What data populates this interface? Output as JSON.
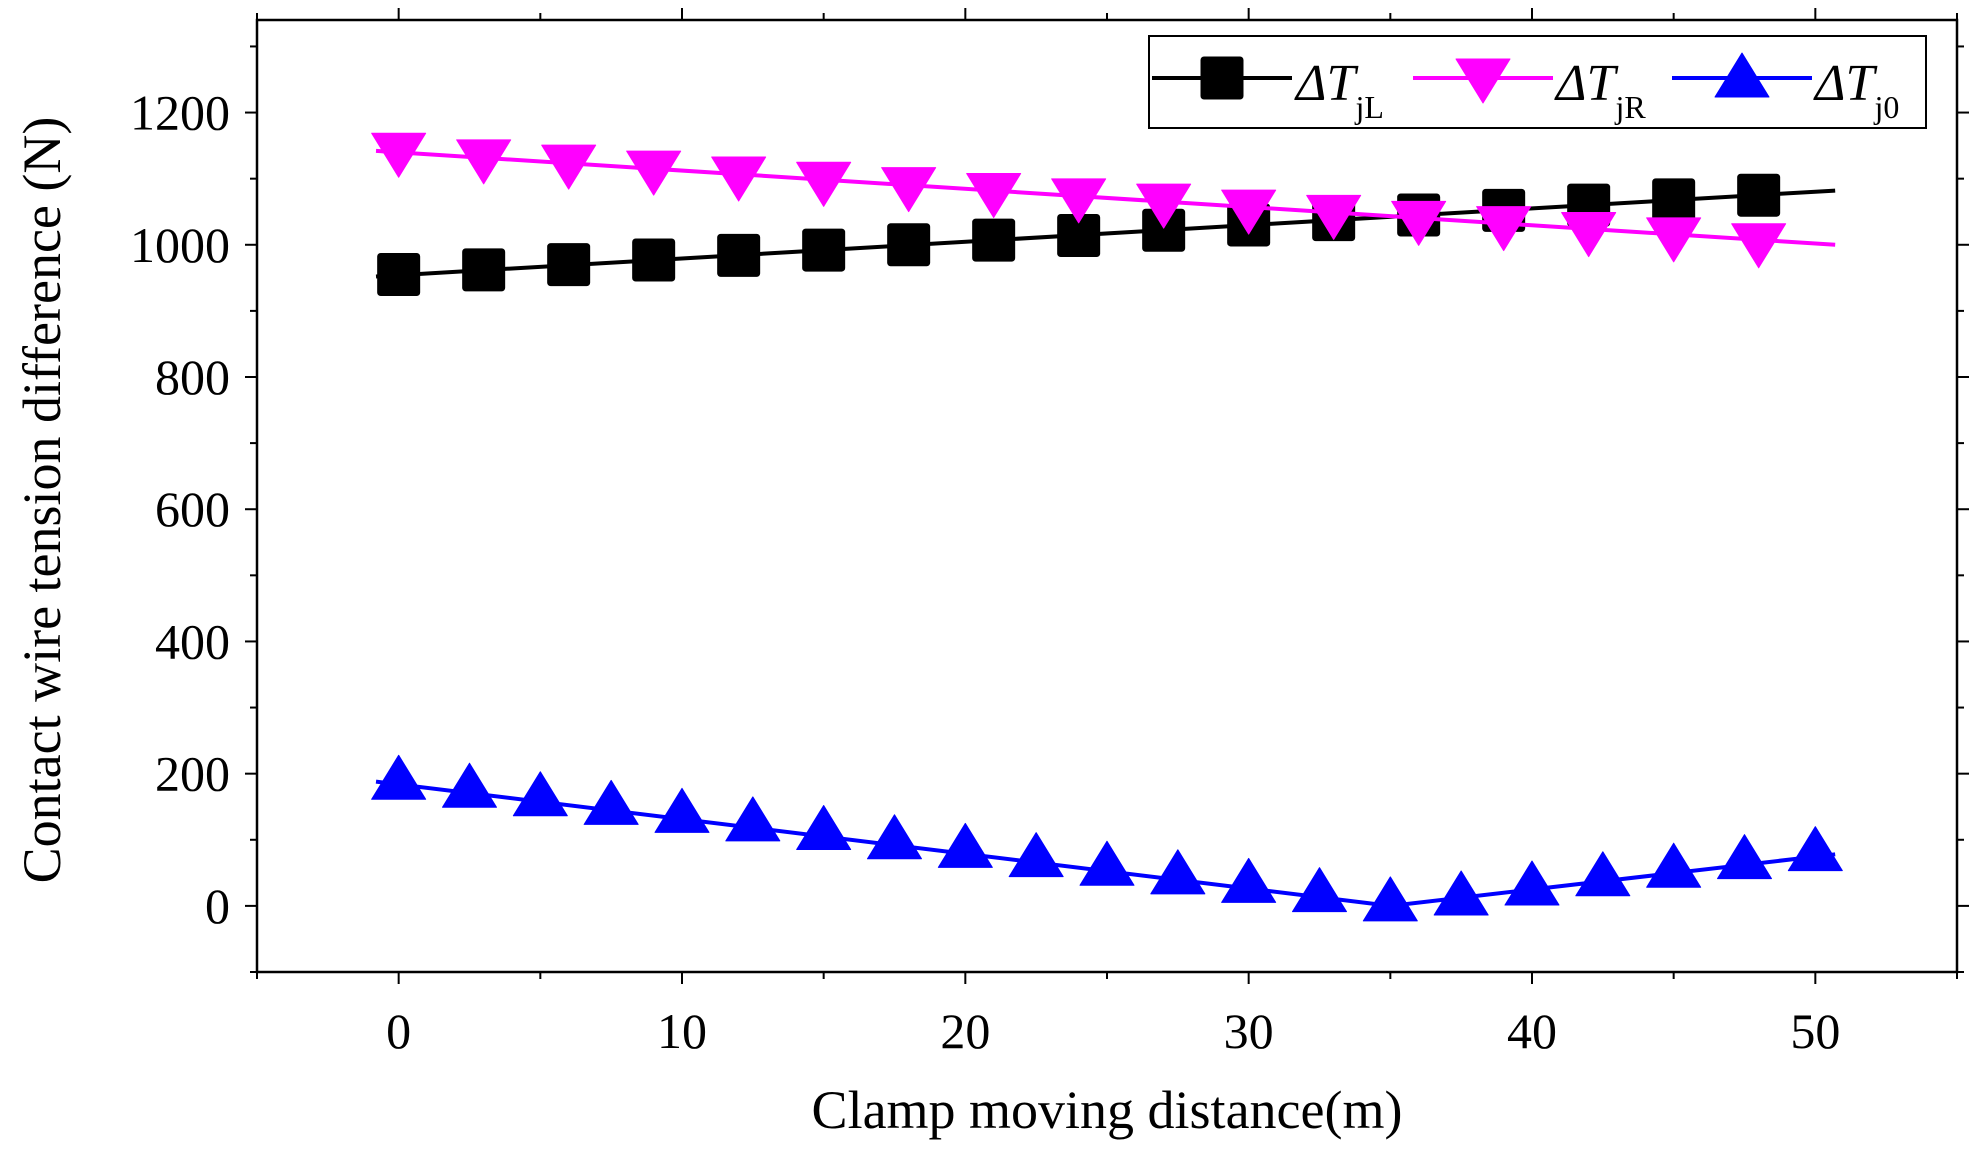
{
  "chart_data": {
    "type": "line",
    "title": "",
    "xlabel": "Clamp moving distance(m)",
    "ylabel": "Contact wire tension difference (N)",
    "xlim": [
      -5,
      55
    ],
    "ylim": [
      -100,
      1340
    ],
    "xticks": [
      0,
      10,
      20,
      30,
      40,
      50
    ],
    "yticks": [
      0,
      200,
      400,
      600,
      800,
      1000,
      1200
    ],
    "x_tick_labels": [
      "0",
      "10",
      "20",
      "30",
      "40",
      "50"
    ],
    "y_tick_labels": [
      "0",
      "200",
      "400",
      "600",
      "800",
      "1000",
      "1200"
    ],
    "legend_position": "top-right",
    "series": [
      {
        "name": "ΔT_jL",
        "legend_symbol": "ΔT",
        "legend_sub": "jL",
        "color": "#000000",
        "marker": "square",
        "line": {
          "x": [
            -0.8,
            50.7
          ],
          "y": [
            952,
            1082
          ]
        },
        "x": [
          0,
          3,
          6,
          9,
          12,
          15,
          18,
          21,
          24,
          27,
          30,
          33,
          36,
          39,
          42,
          45,
          48
        ],
        "y": [
          955,
          962,
          970,
          977,
          984,
          992,
          1000,
          1007,
          1014,
          1022,
          1030,
          1038,
          1045,
          1052,
          1060,
          1068,
          1075
        ]
      },
      {
        "name": "ΔT_jR",
        "legend_symbol": "ΔT",
        "legend_sub": "jR",
        "color": "#ff00ff",
        "marker": "triangle-down",
        "line": {
          "x": [
            -0.8,
            50.7
          ],
          "y": [
            1142,
            1000
          ]
        },
        "x": [
          0,
          3,
          6,
          9,
          12,
          15,
          18,
          21,
          24,
          27,
          30,
          33,
          36,
          39,
          42,
          45,
          48
        ],
        "y": [
          1140,
          1130,
          1122,
          1113,
          1104,
          1096,
          1088,
          1079,
          1071,
          1063,
          1054,
          1046,
          1037,
          1029,
          1020,
          1012,
          1003
        ]
      },
      {
        "name": "ΔT_j0",
        "legend_symbol": "ΔT",
        "legend_sub": "j0",
        "color": "#0000ff",
        "marker": "triangle-up",
        "line": {
          "x": [
            -0.8,
            35,
            50.7
          ],
          "y": [
            188,
            0,
            78
          ]
        },
        "x": [
          0,
          2.5,
          5,
          7.5,
          10,
          12.5,
          15,
          17.5,
          20,
          22.5,
          25,
          27.5,
          30,
          32.5,
          35,
          37.5,
          40,
          42.5,
          45,
          47.5,
          50
        ],
        "y": [
          190,
          178,
          165,
          152,
          140,
          127,
          114,
          100,
          87,
          73,
          60,
          47,
          34,
          20,
          6,
          15,
          30,
          44,
          57,
          70,
          82
        ]
      }
    ]
  }
}
